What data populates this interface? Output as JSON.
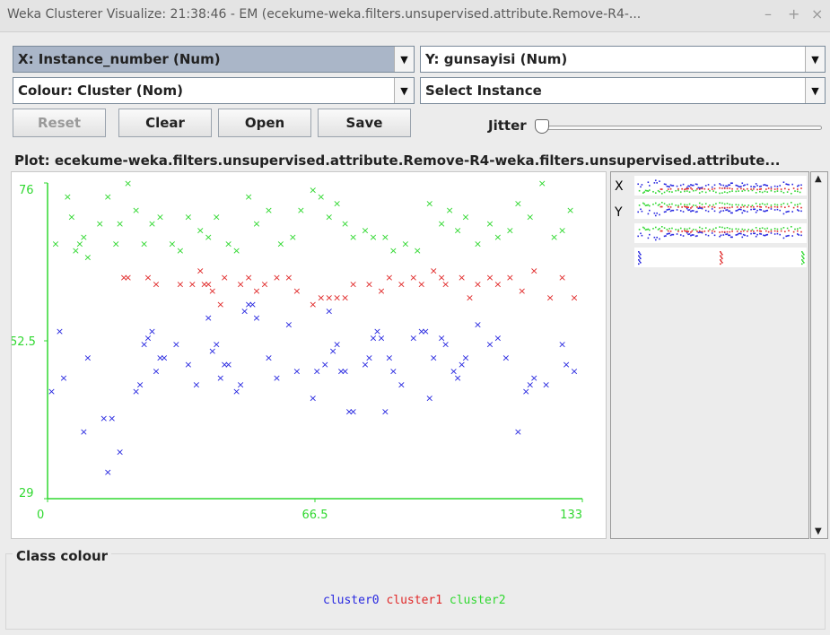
{
  "window": {
    "title": "Weka Clusterer Visualize: 21:38:46 - EM (ecekume-weka.filters.unsupervised.attribute.Remove-R4-...",
    "controls": [
      "–",
      "+",
      "×"
    ]
  },
  "controls": {
    "x_axis": "X: Instance_number (Num)",
    "y_axis": "Y: gunsayisi (Num)",
    "colour": "Colour: Cluster (Nom)",
    "select_instance": "Select Instance",
    "reset": "Reset",
    "clear": "Clear",
    "open": "Open",
    "save": "Save",
    "jitter": "Jitter"
  },
  "plot": {
    "title": "Plot: ecekume-weka.filters.unsupervised.attribute.Remove-R4-weka.filters.unsupervised.attribute..."
  },
  "attr_panel": {
    "x_label": "X",
    "y_label": "Y"
  },
  "class_colour": {
    "title": "Class colour",
    "items": [
      {
        "label": "cluster0",
        "color": "#2828e0"
      },
      {
        "label": "cluster1",
        "color": "#e02828"
      },
      {
        "label": "cluster2",
        "color": "#30d830"
      }
    ]
  },
  "chart_data": {
    "type": "scatter",
    "title": "",
    "xlabel": "",
    "ylabel": "",
    "xlim": [
      0,
      133
    ],
    "ylim": [
      29,
      76
    ],
    "x_ticks": [
      "0",
      "66.5",
      "133"
    ],
    "y_ticks": [
      "29",
      "52.5",
      "76"
    ],
    "axis_color": "#30d830",
    "series": [
      {
        "name": "cluster0",
        "color": "#2828e0",
        "points": [
          [
            1,
            45
          ],
          [
            3,
            54
          ],
          [
            4,
            47
          ],
          [
            9,
            39
          ],
          [
            10,
            50
          ],
          [
            14,
            41
          ],
          [
            15,
            33
          ],
          [
            16,
            41
          ],
          [
            18,
            36
          ],
          [
            22,
            45
          ],
          [
            23,
            46
          ],
          [
            24,
            52
          ],
          [
            25,
            53
          ],
          [
            26,
            54
          ],
          [
            27,
            48
          ],
          [
            28,
            50
          ],
          [
            29,
            50
          ],
          [
            32,
            52
          ],
          [
            35,
            49
          ],
          [
            37,
            46
          ],
          [
            40,
            56
          ],
          [
            41,
            51
          ],
          [
            42,
            52
          ],
          [
            43,
            47
          ],
          [
            44,
            49
          ],
          [
            45,
            49
          ],
          [
            47,
            45
          ],
          [
            48,
            46
          ],
          [
            49,
            57
          ],
          [
            50,
            58
          ],
          [
            51,
            58
          ],
          [
            52,
            56
          ],
          [
            55,
            50
          ],
          [
            57,
            47
          ],
          [
            60,
            55
          ],
          [
            62,
            48
          ],
          [
            66,
            44
          ],
          [
            67,
            48
          ],
          [
            69,
            49
          ],
          [
            70,
            57
          ],
          [
            71,
            51
          ],
          [
            72,
            52
          ],
          [
            73,
            48
          ],
          [
            74,
            48
          ],
          [
            75,
            42
          ],
          [
            76,
            42
          ],
          [
            79,
            49
          ],
          [
            80,
            50
          ],
          [
            81,
            53
          ],
          [
            82,
            54
          ],
          [
            83,
            53
          ],
          [
            84,
            42
          ],
          [
            85,
            50
          ],
          [
            86,
            48
          ],
          [
            88,
            46
          ],
          [
            91,
            53
          ],
          [
            93,
            54
          ],
          [
            94,
            54
          ],
          [
            95,
            44
          ],
          [
            96,
            50
          ],
          [
            98,
            53
          ],
          [
            99,
            52
          ],
          [
            101,
            48
          ],
          [
            102,
            47
          ],
          [
            103,
            49
          ],
          [
            104,
            50
          ],
          [
            107,
            55
          ],
          [
            110,
            52
          ],
          [
            112,
            53
          ],
          [
            114,
            50
          ],
          [
            117,
            39
          ],
          [
            119,
            45
          ],
          [
            120,
            46
          ],
          [
            121,
            47
          ],
          [
            124,
            46
          ],
          [
            128,
            52
          ],
          [
            129,
            49
          ],
          [
            131,
            48
          ]
        ]
      },
      {
        "name": "cluster1",
        "color": "#e02828",
        "points": [
          [
            19,
            62
          ],
          [
            20,
            62
          ],
          [
            25,
            62
          ],
          [
            27,
            61
          ],
          [
            33,
            61
          ],
          [
            36,
            61
          ],
          [
            38,
            63
          ],
          [
            39,
            61
          ],
          [
            40,
            61
          ],
          [
            41,
            60
          ],
          [
            43,
            58
          ],
          [
            44,
            62
          ],
          [
            48,
            61
          ],
          [
            50,
            62
          ],
          [
            52,
            60
          ],
          [
            54,
            61
          ],
          [
            57,
            62
          ],
          [
            60,
            62
          ],
          [
            62,
            60
          ],
          [
            66,
            58
          ],
          [
            68,
            59
          ],
          [
            70,
            59
          ],
          [
            72,
            59
          ],
          [
            74,
            59
          ],
          [
            76,
            61
          ],
          [
            80,
            61
          ],
          [
            83,
            60
          ],
          [
            85,
            62
          ],
          [
            88,
            61
          ],
          [
            91,
            62
          ],
          [
            93,
            61
          ],
          [
            96,
            63
          ],
          [
            98,
            62
          ],
          [
            99,
            61
          ],
          [
            103,
            62
          ],
          [
            105,
            59
          ],
          [
            107,
            61
          ],
          [
            110,
            62
          ],
          [
            112,
            61
          ],
          [
            115,
            62
          ],
          [
            118,
            60
          ],
          [
            121,
            63
          ],
          [
            125,
            59
          ],
          [
            128,
            62
          ],
          [
            131,
            59
          ]
        ]
      },
      {
        "name": "cluster2",
        "color": "#30d830",
        "points": [
          [
            2,
            67
          ],
          [
            5,
            74
          ],
          [
            6,
            71
          ],
          [
            7,
            66
          ],
          [
            8,
            67
          ],
          [
            9,
            68
          ],
          [
            10,
            65
          ],
          [
            13,
            70
          ],
          [
            15,
            74
          ],
          [
            17,
            67
          ],
          [
            18,
            70
          ],
          [
            20,
            76
          ],
          [
            22,
            72
          ],
          [
            24,
            67
          ],
          [
            26,
            70
          ],
          [
            28,
            71
          ],
          [
            31,
            67
          ],
          [
            33,
            66
          ],
          [
            35,
            71
          ],
          [
            38,
            69
          ],
          [
            40,
            68
          ],
          [
            42,
            71
          ],
          [
            45,
            67
          ],
          [
            47,
            66
          ],
          [
            50,
            74
          ],
          [
            52,
            70
          ],
          [
            55,
            72
          ],
          [
            58,
            67
          ],
          [
            61,
            68
          ],
          [
            63,
            72
          ],
          [
            66,
            75
          ],
          [
            68,
            74
          ],
          [
            70,
            71
          ],
          [
            72,
            73
          ],
          [
            74,
            70
          ],
          [
            76,
            68
          ],
          [
            79,
            69
          ],
          [
            81,
            68
          ],
          [
            84,
            68
          ],
          [
            86,
            66
          ],
          [
            89,
            67
          ],
          [
            92,
            66
          ],
          [
            95,
            73
          ],
          [
            98,
            70
          ],
          [
            100,
            72
          ],
          [
            102,
            69
          ],
          [
            104,
            71
          ],
          [
            107,
            67
          ],
          [
            110,
            70
          ],
          [
            112,
            68
          ],
          [
            115,
            69
          ],
          [
            117,
            73
          ],
          [
            120,
            71
          ],
          [
            123,
            76
          ],
          [
            126,
            68
          ],
          [
            128,
            69
          ],
          [
            130,
            72
          ]
        ]
      }
    ]
  }
}
